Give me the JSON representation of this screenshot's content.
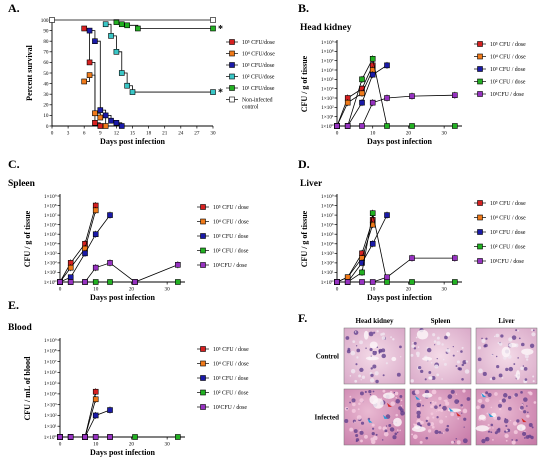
{
  "colors": {
    "d1e5": "#d62020",
    "d1e4": "#f07a1a",
    "d1e3": "#1a1aa8",
    "d1e2": "#22b022",
    "d1e1": "#9632c0",
    "ctrl": "#ffffff",
    "surv_1e2": "#3ac6c6"
  },
  "chart_data": [
    {
      "id": "A",
      "panel_label": "A.",
      "type": "line",
      "title": "",
      "xlabel": "Days post infection",
      "ylabel": "Percent survival",
      "xlim": [
        0,
        30
      ],
      "ylim": [
        0,
        100
      ],
      "xticks": [
        0,
        3,
        6,
        9,
        12,
        15,
        18,
        21,
        24,
        27,
        30
      ],
      "yticks": [
        0,
        10,
        20,
        30,
        40,
        50,
        60,
        70,
        80,
        90,
        100
      ],
      "legend_position": "right",
      "annotations": [
        "*",
        "*"
      ],
      "series": [
        {
          "name": "10⁵ CFU/dose",
          "color_key": "d1e5",
          "points": [
            [
              6,
              92
            ],
            [
              7,
              60
            ],
            [
              8,
              3
            ],
            [
              9,
              0
            ]
          ]
        },
        {
          "name": "10⁴ CFU/dose",
          "color_key": "d1e4",
          "points": [
            [
              6,
              42
            ],
            [
              7,
              48
            ],
            [
              8,
              12
            ],
            [
              9,
              8
            ],
            [
              10,
              0
            ]
          ]
        },
        {
          "name": "10³ CFU/dose",
          "color_key": "d1e3",
          "points": [
            [
              7,
              90
            ],
            [
              8,
              80
            ],
            [
              9,
              15
            ],
            [
              10,
              10
            ],
            [
              11,
              5
            ],
            [
              12,
              3
            ],
            [
              13,
              0
            ]
          ]
        },
        {
          "name": "10² CFU/dose",
          "color_key": "surv_1e2",
          "points": [
            [
              10,
              96
            ],
            [
              11,
              85
            ],
            [
              12,
              70
            ],
            [
              13,
              50
            ],
            [
              14,
              38
            ],
            [
              15,
              32
            ],
            [
              30,
              32
            ]
          ]
        },
        {
          "name": "10¹ CFU/dose",
          "color_key": "d1e2",
          "points": [
            [
              12,
              98
            ],
            [
              13,
              96
            ],
            [
              14,
              95
            ],
            [
              16,
              92
            ],
            [
              30,
              92
            ]
          ]
        },
        {
          "name": "Non-infected control",
          "color_key": "ctrl",
          "points": [
            [
              0,
              100
            ],
            [
              30,
              100
            ]
          ]
        }
      ]
    },
    {
      "id": "B",
      "panel_label": "B.",
      "type": "line",
      "title": "Head kidney",
      "xlabel": "Days post infection",
      "ylabel": "CFU / g of tissue",
      "xlim": [
        0,
        35
      ],
      "ylim_exp": [
        0,
        9
      ],
      "xticks": [
        0,
        10,
        20,
        30
      ],
      "ytick_labels": [
        "1×10⁰",
        "1×10¹",
        "1×10²",
        "1×10³",
        "1×10⁴",
        "1×10⁵",
        "1×10⁶",
        "1×10⁷",
        "1×10⁸",
        "1×10⁹"
      ],
      "legend_position": "right",
      "series": [
        {
          "name": "10⁵ CFU / dose",
          "color_key": "d1e5",
          "points": [
            [
              0,
              0
            ],
            [
              3,
              3
            ],
            [
              7,
              4
            ],
            [
              10,
              6.5
            ]
          ]
        },
        {
          "name": "10⁴ CFU / dose",
          "color_key": "d1e4",
          "points": [
            [
              0,
              0
            ],
            [
              3,
              2.5
            ],
            [
              7,
              3.5
            ],
            [
              10,
              6
            ]
          ]
        },
        {
          "name": "10³ CFU / dose",
          "color_key": "d1e3",
          "points": [
            [
              0,
              0
            ],
            [
              3,
              0
            ],
            [
              7,
              2.5
            ],
            [
              10,
              5.5
            ],
            [
              14,
              6.5
            ]
          ]
        },
        {
          "name": "10² CFU / dose",
          "color_key": "d1e2",
          "points": [
            [
              0,
              0
            ],
            [
              3,
              0
            ],
            [
              7,
              5
            ],
            [
              10,
              7.2
            ],
            [
              14,
              0
            ],
            [
              21,
              0
            ],
            [
              33,
              0
            ]
          ]
        },
        {
          "name": "10¹CFU / dose",
          "color_key": "d1e1",
          "points": [
            [
              0,
              0
            ],
            [
              3,
              0
            ],
            [
              7,
              0
            ],
            [
              10,
              2.5
            ],
            [
              14,
              3
            ],
            [
              21,
              3.2
            ],
            [
              33,
              3.3
            ]
          ]
        }
      ]
    },
    {
      "id": "C",
      "panel_label": "C.",
      "type": "line",
      "title": "Spleen",
      "xlabel": "Days post infection",
      "ylabel": "CFU / g of tissue",
      "xlim": [
        0,
        35
      ],
      "ylim_exp": [
        0,
        9
      ],
      "xticks": [
        0,
        10,
        20,
        30
      ],
      "ytick_labels": [
        "1×10⁰",
        "1×10¹",
        "1×10²",
        "1×10³",
        "1×10⁴",
        "1×10⁵",
        "1×10⁶",
        "1×10⁷",
        "1×10⁸",
        "1×10⁹"
      ],
      "legend_position": "right",
      "series": [
        {
          "name": "10⁵ CFU / dose",
          "color_key": "d1e5",
          "points": [
            [
              0,
              0
            ],
            [
              3,
              2
            ],
            [
              7,
              4
            ],
            [
              10,
              8
            ]
          ]
        },
        {
          "name": "10⁴ CFU / dose",
          "color_key": "d1e4",
          "points": [
            [
              0,
              0
            ],
            [
              3,
              1.5
            ],
            [
              7,
              3.5
            ],
            [
              10,
              7.5
            ]
          ]
        },
        {
          "name": "10³ CFU / dose",
          "color_key": "d1e3",
          "points": [
            [
              0,
              0
            ],
            [
              3,
              0.5
            ],
            [
              7,
              3
            ],
            [
              10,
              5
            ],
            [
              14,
              7
            ]
          ]
        },
        {
          "name": "10² CFU / dose",
          "color_key": "d1e2",
          "points": [
            [
              0,
              0
            ],
            [
              3,
              0
            ],
            [
              7,
              0
            ],
            [
              10,
              0
            ],
            [
              14,
              0
            ],
            [
              21,
              0
            ],
            [
              33,
              0
            ]
          ]
        },
        {
          "name": "10¹CFU / dose",
          "color_key": "d1e1",
          "points": [
            [
              0,
              0
            ],
            [
              3,
              0
            ],
            [
              7,
              0
            ],
            [
              10,
              1.5
            ],
            [
              14,
              2
            ],
            [
              21,
              0
            ],
            [
              33,
              1.8
            ]
          ]
        }
      ]
    },
    {
      "id": "D",
      "panel_label": "D.",
      "type": "line",
      "title": "Liver",
      "xlabel": "Days post infection",
      "ylabel": "CFU / g of tissue",
      "xlim": [
        0,
        35
      ],
      "ylim_exp": [
        0,
        9
      ],
      "xticks": [
        0,
        10,
        20,
        30
      ],
      "ytick_labels": [
        "1×10⁰",
        "1×10¹",
        "1×10²",
        "1×10³",
        "1×10⁴",
        "1×10⁵",
        "1×10⁶",
        "1×10⁷",
        "1×10⁸",
        "1×10⁹"
      ],
      "legend_position": "right",
      "series": [
        {
          "name": "10⁵ CFU / dose",
          "color_key": "d1e5",
          "points": [
            [
              0,
              0
            ],
            [
              3,
              0.5
            ],
            [
              7,
              3
            ],
            [
              10,
              6.5
            ]
          ]
        },
        {
          "name": "10⁴ CFU / dose",
          "color_key": "d1e4",
          "points": [
            [
              0,
              0
            ],
            [
              3,
              0.5
            ],
            [
              7,
              2.5
            ],
            [
              10,
              6
            ]
          ]
        },
        {
          "name": "10³ CFU / dose",
          "color_key": "d1e3",
          "points": [
            [
              0,
              0
            ],
            [
              3,
              0
            ],
            [
              7,
              2
            ],
            [
              10,
              4
            ],
            [
              14,
              7
            ]
          ]
        },
        {
          "name": "10² CFU / dose",
          "color_key": "d1e2",
          "points": [
            [
              0,
              0
            ],
            [
              3,
              0
            ],
            [
              7,
              1
            ],
            [
              10,
              7.2
            ],
            [
              14,
              0
            ],
            [
              21,
              0
            ],
            [
              33,
              0
            ]
          ]
        },
        {
          "name": "10¹CFU / dose",
          "color_key": "d1e1",
          "points": [
            [
              0,
              0
            ],
            [
              3,
              0
            ],
            [
              7,
              0
            ],
            [
              10,
              0
            ],
            [
              14,
              0.5
            ],
            [
              21,
              2.5
            ],
            [
              33,
              2.5
            ]
          ]
        }
      ]
    },
    {
      "id": "E",
      "panel_label": "E.",
      "type": "line",
      "title": "Blood",
      "xlabel": "Days post infection",
      "ylabel": "CFU / mL of blood",
      "xlim": [
        0,
        35
      ],
      "ylim_exp": [
        0,
        9
      ],
      "xticks": [
        0,
        10,
        20,
        30
      ],
      "ytick_labels": [
        "1×10⁰",
        "1×10¹",
        "1×10²",
        "1×10³",
        "1×10⁴",
        "1×10⁵",
        "1×10⁶",
        "1×10⁷",
        "1×10⁸",
        "1×10⁹"
      ],
      "legend_position": "right",
      "series": [
        {
          "name": "10⁵ CFU / dose",
          "color_key": "d1e5",
          "points": [
            [
              0,
              0
            ],
            [
              3,
              0
            ],
            [
              7,
              0
            ],
            [
              10,
              4.2
            ]
          ]
        },
        {
          "name": "10⁴ CFU / dose",
          "color_key": "d1e4",
          "points": [
            [
              0,
              0
            ],
            [
              3,
              0
            ],
            [
              7,
              0
            ],
            [
              10,
              3.5
            ]
          ]
        },
        {
          "name": "10³ CFU / dose",
          "color_key": "d1e3",
          "points": [
            [
              0,
              0
            ],
            [
              3,
              0
            ],
            [
              7,
              0
            ],
            [
              10,
              2
            ],
            [
              14,
              2.5
            ]
          ]
        },
        {
          "name": "10² CFU / dose",
          "color_key": "d1e2",
          "points": [
            [
              0,
              0
            ],
            [
              3,
              0
            ],
            [
              7,
              0
            ],
            [
              10,
              0
            ],
            [
              14,
              0
            ],
            [
              21,
              0
            ],
            [
              33,
              0
            ]
          ]
        },
        {
          "name": "10¹CFU / dose",
          "color_key": "d1e1",
          "points": [
            [
              0,
              0
            ],
            [
              3,
              0
            ],
            [
              7,
              0
            ],
            [
              10,
              0
            ],
            [
              14,
              0
            ]
          ]
        }
      ]
    }
  ],
  "histology": {
    "panel_label": "F.",
    "columns": [
      "Head kidney",
      "Spleen",
      "Liver"
    ],
    "rows": [
      "Control",
      "Infected"
    ]
  }
}
